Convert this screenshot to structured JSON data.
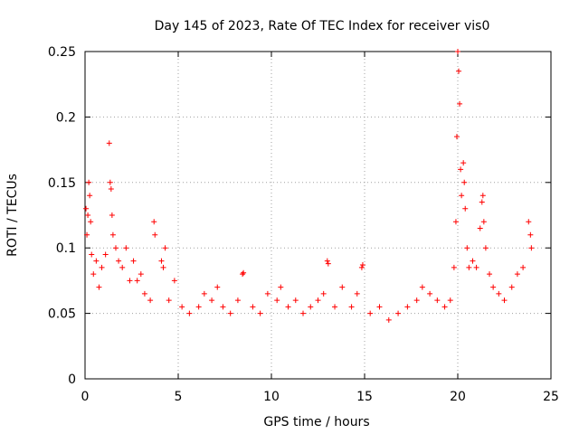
{
  "chart_data": {
    "type": "scatter",
    "title": "Day 145 of 2023, Rate Of TEC Index for receiver vis0",
    "xlabel": "GPS time / hours",
    "ylabel": "ROTI / TECUs",
    "xlim": [
      0,
      25
    ],
    "ylim": [
      0,
      0.25
    ],
    "xticks": [
      "0",
      "5",
      "10",
      "15",
      "20",
      "25"
    ],
    "yticks": [
      "0",
      "0.05",
      "0.1",
      "0.15",
      "0.2",
      "0.25"
    ],
    "grid": true,
    "legend": "none",
    "marker": "+",
    "color": "#ff0000",
    "series": [
      {
        "points": [
          [
            0.05,
            0.13
          ],
          [
            0.1,
            0.11
          ],
          [
            0.15,
            0.125
          ],
          [
            0.2,
            0.15
          ],
          [
            0.25,
            0.14
          ],
          [
            0.3,
            0.12
          ],
          [
            0.35,
            0.095
          ],
          [
            0.45,
            0.08
          ],
          [
            0.6,
            0.09
          ],
          [
            0.75,
            0.07
          ],
          [
            0.9,
            0.085
          ],
          [
            1.1,
            0.095
          ],
          [
            1.3,
            0.18
          ],
          [
            1.35,
            0.15
          ],
          [
            1.4,
            0.145
          ],
          [
            1.45,
            0.125
          ],
          [
            1.5,
            0.11
          ],
          [
            1.65,
            0.1
          ],
          [
            1.8,
            0.09
          ],
          [
            2.0,
            0.085
          ],
          [
            2.2,
            0.1
          ],
          [
            2.4,
            0.075
          ],
          [
            2.6,
            0.09
          ],
          [
            2.8,
            0.075
          ],
          [
            3.0,
            0.08
          ],
          [
            3.2,
            0.065
          ],
          [
            3.5,
            0.06
          ],
          [
            3.7,
            0.12
          ],
          [
            3.75,
            0.11
          ],
          [
            4.1,
            0.09
          ],
          [
            4.2,
            0.085
          ],
          [
            4.3,
            0.1
          ],
          [
            4.5,
            0.06
          ],
          [
            4.8,
            0.075
          ],
          [
            5.2,
            0.055
          ],
          [
            5.6,
            0.05
          ],
          [
            6.1,
            0.055
          ],
          [
            6.4,
            0.065
          ],
          [
            6.8,
            0.06
          ],
          [
            7.1,
            0.07
          ],
          [
            7.4,
            0.055
          ],
          [
            7.8,
            0.05
          ],
          [
            8.2,
            0.06
          ],
          [
            8.45,
            0.08
          ],
          [
            8.5,
            0.081
          ],
          [
            9.0,
            0.055
          ],
          [
            9.4,
            0.05
          ],
          [
            9.8,
            0.065
          ],
          [
            10.3,
            0.06
          ],
          [
            10.5,
            0.07
          ],
          [
            10.9,
            0.055
          ],
          [
            11.3,
            0.06
          ],
          [
            11.7,
            0.05
          ],
          [
            12.1,
            0.055
          ],
          [
            12.5,
            0.06
          ],
          [
            12.8,
            0.065
          ],
          [
            13.0,
            0.09
          ],
          [
            13.05,
            0.088
          ],
          [
            13.4,
            0.055
          ],
          [
            13.8,
            0.07
          ],
          [
            14.3,
            0.055
          ],
          [
            14.6,
            0.065
          ],
          [
            14.85,
            0.085
          ],
          [
            14.9,
            0.087
          ],
          [
            15.3,
            0.05
          ],
          [
            15.8,
            0.055
          ],
          [
            16.3,
            0.045
          ],
          [
            16.8,
            0.05
          ],
          [
            17.3,
            0.055
          ],
          [
            17.8,
            0.06
          ],
          [
            18.1,
            0.07
          ],
          [
            18.5,
            0.065
          ],
          [
            18.9,
            0.06
          ],
          [
            19.3,
            0.055
          ],
          [
            19.6,
            0.06
          ],
          [
            19.8,
            0.085
          ],
          [
            19.9,
            0.12
          ],
          [
            19.95,
            0.185
          ],
          [
            20.0,
            0.25
          ],
          [
            20.05,
            0.235
          ],
          [
            20.1,
            0.21
          ],
          [
            20.15,
            0.16
          ],
          [
            20.2,
            0.14
          ],
          [
            20.3,
            0.165
          ],
          [
            20.35,
            0.15
          ],
          [
            20.4,
            0.13
          ],
          [
            20.5,
            0.1
          ],
          [
            20.6,
            0.085
          ],
          [
            20.8,
            0.09
          ],
          [
            21.0,
            0.085
          ],
          [
            21.2,
            0.115
          ],
          [
            21.3,
            0.135
          ],
          [
            21.35,
            0.14
          ],
          [
            21.4,
            0.12
          ],
          [
            21.5,
            0.1
          ],
          [
            21.7,
            0.08
          ],
          [
            21.9,
            0.07
          ],
          [
            22.2,
            0.065
          ],
          [
            22.5,
            0.06
          ],
          [
            22.9,
            0.07
          ],
          [
            23.2,
            0.08
          ],
          [
            23.5,
            0.085
          ],
          [
            23.8,
            0.12
          ],
          [
            23.9,
            0.11
          ],
          [
            23.95,
            0.1
          ]
        ]
      }
    ]
  }
}
